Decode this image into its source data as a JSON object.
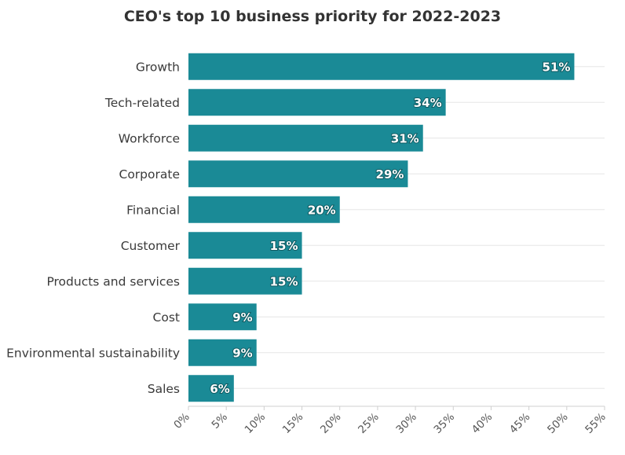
{
  "chart_data": {
    "type": "bar",
    "orientation": "horizontal",
    "title": "CEO's top 10 business priority for 2022-2023",
    "xlabel": "",
    "ylabel": "",
    "categories": [
      "Growth",
      "Tech-related",
      "Workforce",
      "Corporate",
      "Financial",
      "Customer",
      "Products and services",
      "Cost",
      "Environmental sustainability",
      "Sales"
    ],
    "values": [
      51,
      34,
      31,
      29,
      20,
      15,
      15,
      9,
      9,
      6
    ],
    "value_labels": [
      "51%",
      "34%",
      "31%",
      "29%",
      "20%",
      "15%",
      "15%",
      "9%",
      "9%",
      "6%"
    ],
    "xlim": [
      0,
      55
    ],
    "x_ticks": [
      0,
      5,
      10,
      15,
      20,
      25,
      30,
      35,
      40,
      45,
      50,
      55
    ],
    "x_tick_labels": [
      "0%",
      "5%",
      "10%",
      "15%",
      "20%",
      "25%",
      "30%",
      "35%",
      "40%",
      "45%",
      "50%",
      "55%"
    ],
    "grid": true,
    "bar_color": "#1a8a96",
    "legend": "none"
  }
}
